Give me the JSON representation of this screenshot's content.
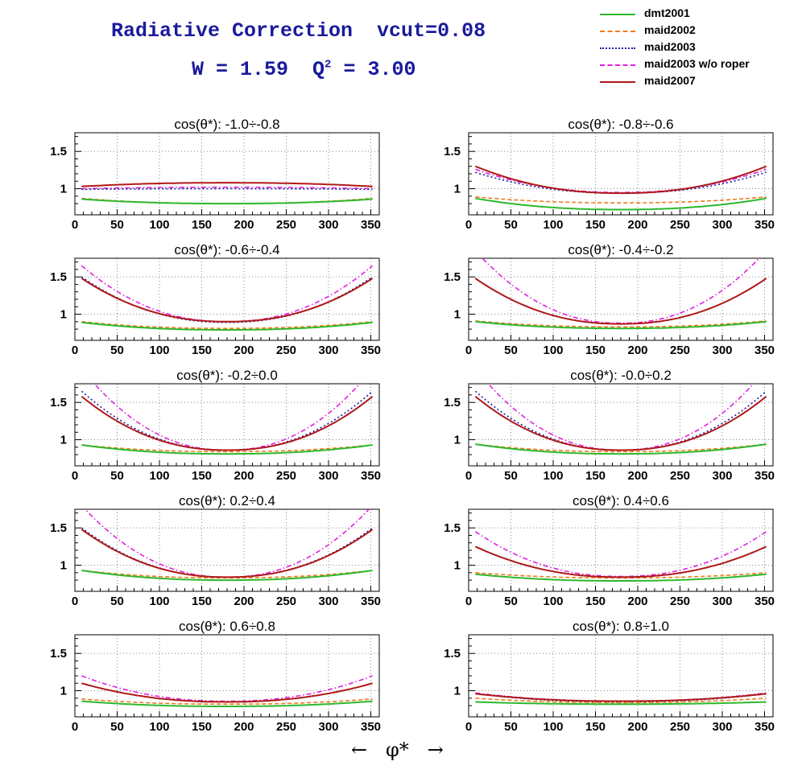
{
  "title": "Radiative Correction  vcut=0.08",
  "subtitle_main": "W = 1.59  Q",
  "subtitle_sup": "2",
  "subtitle_tail": " = 3.00",
  "x_axis_symbol": "←   φ*   →",
  "legend": [
    {
      "name": "dmt2001",
      "color": "#2db82d",
      "style": "solid"
    },
    {
      "name": "maid2002",
      "color": "#f07a1c",
      "style": "dashed"
    },
    {
      "name": "maid2003",
      "color": "#1a1aa0",
      "style": "dotted"
    },
    {
      "name": "maid2003 w/o roper",
      "color": "#e020e0",
      "style": "dashdot"
    },
    {
      "name": "maid2007",
      "color": "#b01818",
      "style": "solid"
    }
  ],
  "chart_data": [
    {
      "type": "line",
      "title": "cos(θ*): -1.0÷-0.8",
      "xlim": [
        0,
        360
      ],
      "ylim": [
        0.65,
        1.75
      ],
      "xticks": [
        0,
        50,
        100,
        150,
        200,
        250,
        300,
        350
      ],
      "yticks": [
        1,
        1.5
      ],
      "series": {
        "dmt2001": {
          "e": 0.86,
          "m": 0.8
        },
        "maid2002": {
          "e": 0.87,
          "m": 0.8
        },
        "maid2003": {
          "e": 0.99,
          "m": 1.0
        },
        "maid2003 w/o roper": {
          "e": 1.0,
          "m": 1.02
        },
        "maid2007": {
          "e": 1.03,
          "m": 1.08
        }
      }
    },
    {
      "type": "line",
      "title": "cos(θ*): -0.8÷-0.6",
      "xlim": [
        0,
        360
      ],
      "ylim": [
        0.65,
        1.75
      ],
      "xticks": [
        0,
        50,
        100,
        150,
        200,
        250,
        300,
        350
      ],
      "yticks": [
        1,
        1.5
      ],
      "series": {
        "dmt2001": {
          "e": 0.87,
          "m": 0.72
        },
        "maid2002": {
          "e": 0.89,
          "m": 0.81
        },
        "maid2003": {
          "e": 1.22,
          "m": 0.94
        },
        "maid2003 w/o roper": {
          "e": 1.26,
          "m": 0.95
        },
        "maid2007": {
          "e": 1.3,
          "m": 0.94
        }
      }
    },
    {
      "type": "line",
      "title": "cos(θ*): -0.6÷-0.4",
      "xlim": [
        0,
        360
      ],
      "ylim": [
        0.65,
        1.75
      ],
      "xticks": [
        0,
        50,
        100,
        150,
        200,
        250,
        300,
        350
      ],
      "yticks": [
        1,
        1.5
      ],
      "series": {
        "dmt2001": {
          "e": 0.89,
          "m": 0.79
        },
        "maid2002": {
          "e": 0.9,
          "m": 0.81
        },
        "maid2003": {
          "e": 1.5,
          "m": 0.89
        },
        "maid2003 w/o roper": {
          "e": 1.65,
          "m": 0.9
        },
        "maid2007": {
          "e": 1.48,
          "m": 0.9
        }
      }
    },
    {
      "type": "line",
      "title": "cos(θ*): -0.4÷-0.2",
      "xlim": [
        0,
        360
      ],
      "ylim": [
        0.65,
        1.75
      ],
      "xticks": [
        0,
        50,
        100,
        150,
        200,
        250,
        300,
        350
      ],
      "yticks": [
        1,
        1.5
      ],
      "series": {
        "dmt2001": {
          "e": 0.9,
          "m": 0.81
        },
        "maid2002": {
          "e": 0.91,
          "m": 0.83
        },
        "maid2003": {
          "e": 1.48,
          "m": 0.87
        },
        "maid2003 w/o roper": {
          "e": 1.85,
          "m": 0.88
        },
        "maid2007": {
          "e": 1.48,
          "m": 0.87
        }
      }
    },
    {
      "type": "line",
      "title": "cos(θ*): -0.2÷0.0",
      "xlim": [
        0,
        360
      ],
      "ylim": [
        0.65,
        1.75
      ],
      "xticks": [
        0,
        50,
        100,
        150,
        200,
        250,
        300,
        350
      ],
      "yticks": [
        1,
        1.5
      ],
      "series": {
        "dmt2001": {
          "e": 0.93,
          "m": 0.81
        },
        "maid2002": {
          "e": 0.93,
          "m": 0.84
        },
        "maid2003": {
          "e": 1.65,
          "m": 0.86
        },
        "maid2003 w/o roper": {
          "e": 1.95,
          "m": 0.86
        },
        "maid2007": {
          "e": 1.58,
          "m": 0.86
        }
      }
    },
    {
      "type": "line",
      "title": "cos(θ*): -0.0÷0.2",
      "xlim": [
        0,
        360
      ],
      "ylim": [
        0.65,
        1.75
      ],
      "xticks": [
        0,
        50,
        100,
        150,
        200,
        250,
        300,
        350
      ],
      "yticks": [
        1,
        1.5
      ],
      "series": {
        "dmt2001": {
          "e": 0.94,
          "m": 0.81
        },
        "maid2002": {
          "e": 0.94,
          "m": 0.84
        },
        "maid2003": {
          "e": 1.65,
          "m": 0.86
        },
        "maid2003 w/o roper": {
          "e": 1.95,
          "m": 0.86
        },
        "maid2007": {
          "e": 1.58,
          "m": 0.86
        }
      }
    },
    {
      "type": "line",
      "title": "cos(θ*): 0.2÷0.4",
      "xlim": [
        0,
        360
      ],
      "ylim": [
        0.65,
        1.75
      ],
      "xticks": [
        0,
        50,
        100,
        150,
        200,
        250,
        300,
        350
      ],
      "yticks": [
        1,
        1.5
      ],
      "series": {
        "dmt2001": {
          "e": 0.93,
          "m": 0.8
        },
        "maid2002": {
          "e": 0.93,
          "m": 0.83
        },
        "maid2003": {
          "e": 1.5,
          "m": 0.84
        },
        "maid2003 w/o roper": {
          "e": 1.8,
          "m": 0.84
        },
        "maid2007": {
          "e": 1.48,
          "m": 0.84
        }
      }
    },
    {
      "type": "line",
      "title": "cos(θ*): 0.4÷0.6",
      "xlim": [
        0,
        360
      ],
      "ylim": [
        0.65,
        1.75
      ],
      "xticks": [
        0,
        50,
        100,
        150,
        200,
        250,
        300,
        350
      ],
      "yticks": [
        1,
        1.5
      ],
      "series": {
        "dmt2001": {
          "e": 0.88,
          "m": 0.79
        },
        "maid2002": {
          "e": 0.9,
          "m": 0.83
        },
        "maid2003": {
          "e": 1.25,
          "m": 0.84
        },
        "maid2003 w/o roper": {
          "e": 1.45,
          "m": 0.85
        },
        "maid2007": {
          "e": 1.25,
          "m": 0.84
        }
      }
    },
    {
      "type": "line",
      "title": "cos(θ*): 0.6÷0.8",
      "xlim": [
        0,
        360
      ],
      "ylim": [
        0.65,
        1.75
      ],
      "xticks": [
        0,
        50,
        100,
        150,
        200,
        250,
        300,
        350
      ],
      "yticks": [
        1,
        1.5
      ],
      "series": {
        "dmt2001": {
          "e": 0.86,
          "m": 0.79
        },
        "maid2002": {
          "e": 0.89,
          "m": 0.82
        },
        "maid2003": {
          "e": 1.1,
          "m": 0.85
        },
        "maid2003 w/o roper": {
          "e": 1.2,
          "m": 0.86
        },
        "maid2007": {
          "e": 1.1,
          "m": 0.85
        }
      }
    },
    {
      "type": "line",
      "title": "cos(θ*): 0.8÷1.0",
      "xlim": [
        0,
        360
      ],
      "ylim": [
        0.65,
        1.75
      ],
      "xticks": [
        0,
        50,
        100,
        150,
        200,
        250,
        300,
        350
      ],
      "yticks": [
        1,
        1.5
      ],
      "series": {
        "dmt2001": {
          "e": 0.85,
          "m": 0.82
        },
        "maid2002": {
          "e": 0.9,
          "m": 0.84
        },
        "maid2003": {
          "e": 0.96,
          "m": 0.85
        },
        "maid2003 w/o roper": {
          "e": 0.97,
          "m": 0.86
        },
        "maid2007": {
          "e": 0.96,
          "m": 0.86
        }
      }
    }
  ]
}
